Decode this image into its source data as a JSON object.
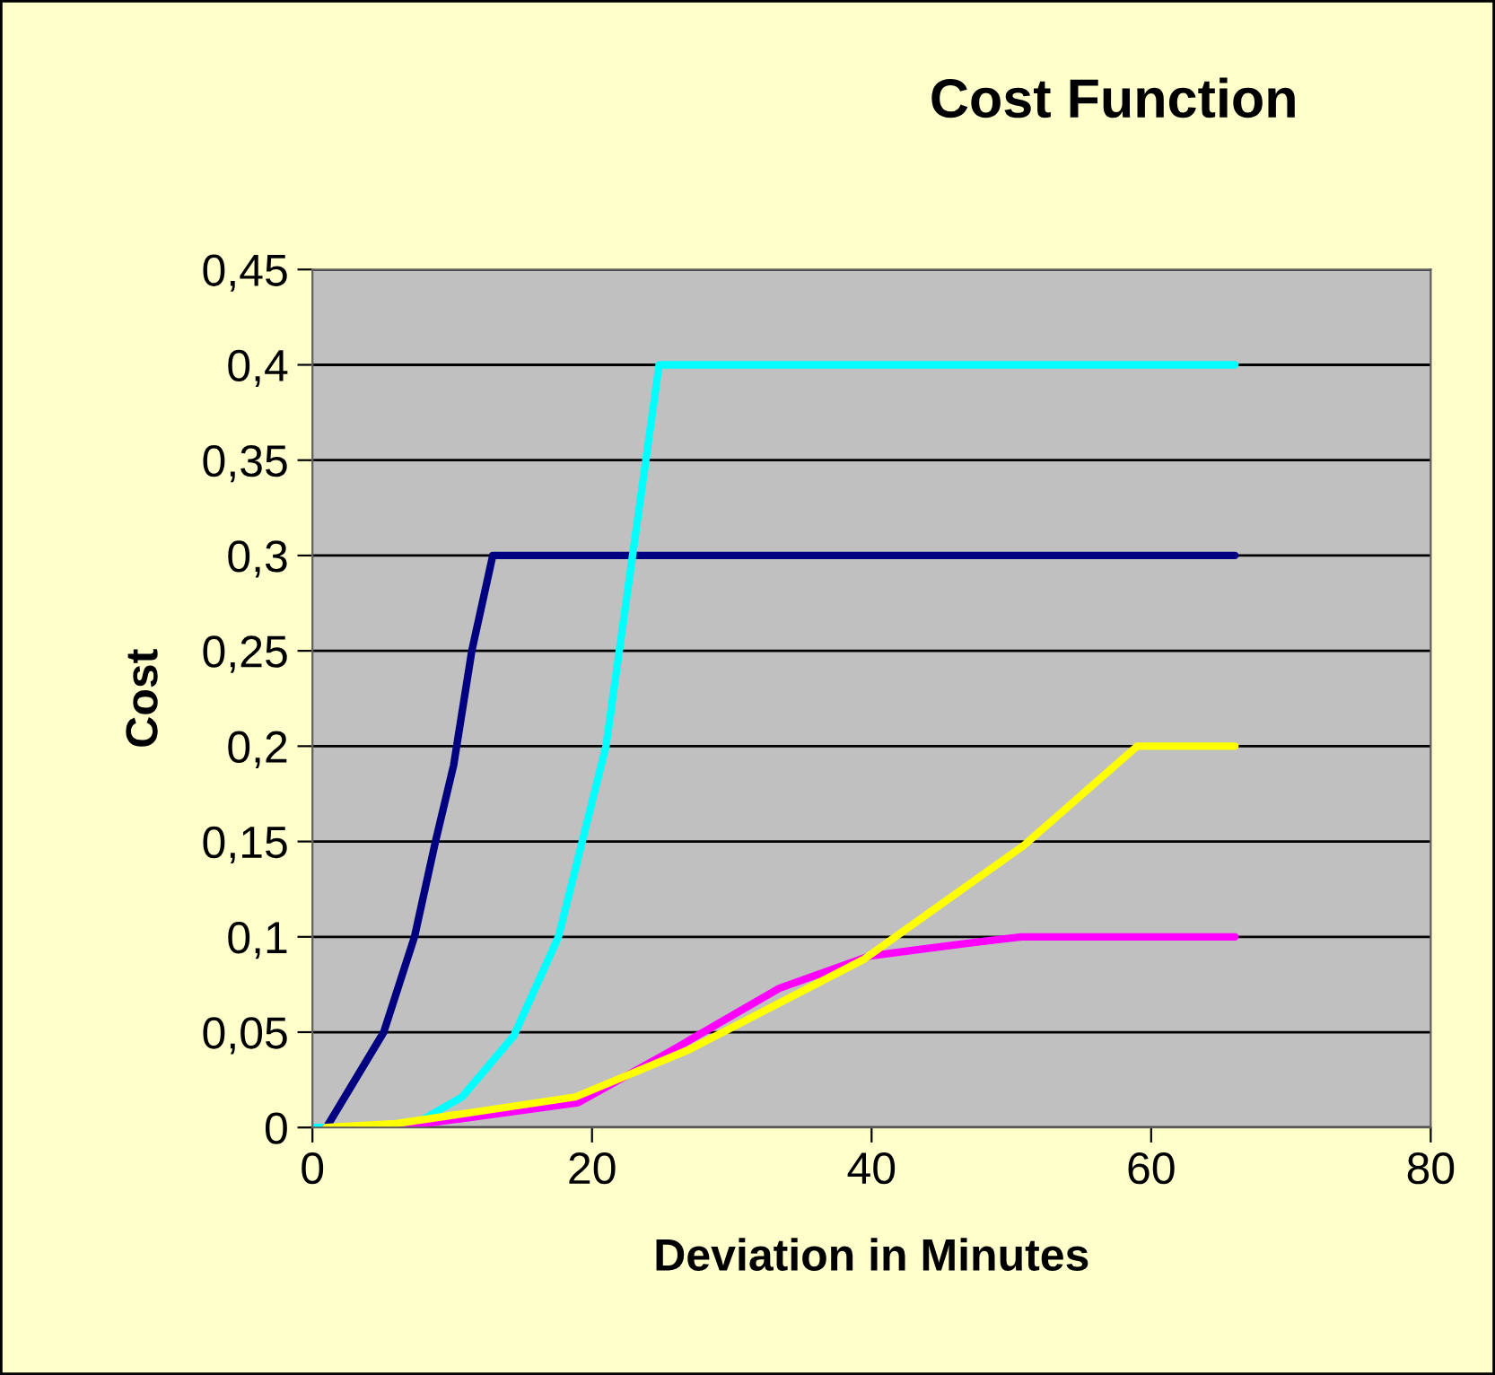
{
  "chart_data": {
    "type": "line",
    "title": "Cost Function",
    "xlabel": "Deviation in Minutes",
    "ylabel": "Cost",
    "xlim": [
      0,
      80
    ],
    "xticks": [
      0,
      20,
      40,
      60,
      80
    ],
    "ylim": [
      0,
      0.45
    ],
    "yticks": [
      0,
      {
        "value": 0.05,
        "label": "0,05"
      },
      {
        "value": 0.1,
        "label": "0,1"
      },
      {
        "value": 0.15,
        "label": "0,15"
      },
      {
        "value": 0.2,
        "label": "0,2"
      },
      {
        "value": 0.25,
        "label": "0,25"
      },
      {
        "value": 0.3,
        "label": "0,3"
      },
      {
        "value": 0.35,
        "label": "0,35"
      },
      {
        "value": 0.4,
        "label": "0,4"
      },
      {
        "value": 0.45,
        "label": "0,45"
      }
    ],
    "grid": "y",
    "marker": "none",
    "line_style": "solid",
    "series": [
      {
        "color": "#000080",
        "x": [
          1,
          5.1,
          7.3,
          8.8,
          10.1,
          11.4,
          12.9,
          66
        ],
        "values": [
          0,
          0.05,
          0.1,
          0.15,
          0.19,
          0.25,
          0.3,
          0.3
        ]
      },
      {
        "color": "#00ffff",
        "x": [
          0,
          6.9,
          10.7,
          14.4,
          17.6,
          19.3,
          21,
          22.9,
          24.8,
          66
        ],
        "values": [
          0,
          0,
          0.016,
          0.048,
          0.1,
          0.15,
          0.2,
          0.3,
          0.4,
          0.4
        ]
      },
      {
        "color": "#ff00ff",
        "x": [
          1,
          6,
          19,
          25.6,
          33.4,
          39.9,
          47.3,
          50.7,
          66
        ],
        "values": [
          0,
          0,
          0.013,
          0.04,
          0.073,
          0.09,
          0.097,
          0.1,
          0.1
        ]
      },
      {
        "color": "#ffff00",
        "x": [
          1,
          6,
          18.8,
          27,
          39.4,
          50.9,
          59,
          66
        ],
        "values": [
          0,
          0.002,
          0.016,
          0.041,
          0.088,
          0.148,
          0.2,
          0.2
        ]
      }
    ]
  }
}
